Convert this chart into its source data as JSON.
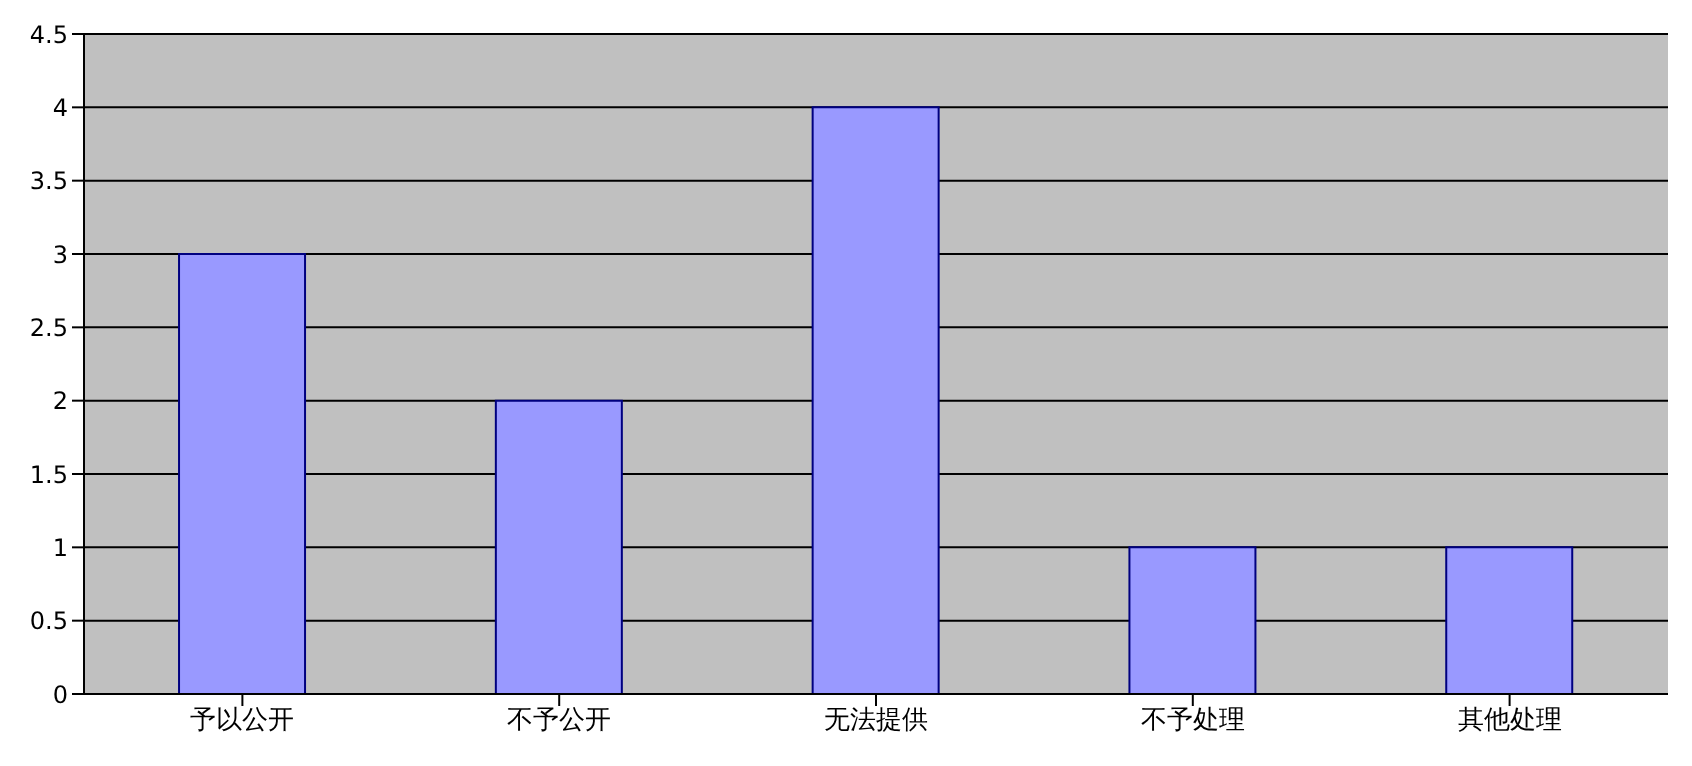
{
  "chart_data": {
    "type": "bar",
    "categories": [
      "予以公开",
      "不予公开",
      "无法提供",
      "不予处理",
      "其他处理"
    ],
    "values": [
      3,
      2,
      4,
      1,
      1
    ],
    "color": "#9999ff",
    "ylim": [
      0,
      4.5
    ],
    "yticks": [
      0,
      {
        "value": 0.5,
        "label": "0.5"
      },
      1,
      {
        "value": 1.5,
        "label": "1.5"
      },
      2,
      {
        "value": 2.5,
        "label": "2.5"
      },
      3,
      {
        "value": 3.5,
        "label": "3.5"
      },
      4,
      {
        "value": 4.5,
        "label": "4.5"
      }
    ],
    "grid": "y",
    "legend": false
  }
}
